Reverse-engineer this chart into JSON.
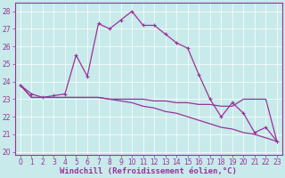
{
  "background_color": "#c8eaea",
  "line_color": "#993399",
  "hours": [
    0,
    1,
    2,
    3,
    4,
    5,
    6,
    7,
    8,
    9,
    10,
    11,
    12,
    13,
    14,
    15,
    16,
    17,
    18,
    19,
    20,
    21,
    22,
    23
  ],
  "line1": [
    23.8,
    23.3,
    23.1,
    23.2,
    23.3,
    25.5,
    24.3,
    27.3,
    27.0,
    27.5,
    28.0,
    27.2,
    27.2,
    26.7,
    26.2,
    25.9,
    24.4,
    23.0,
    22.0,
    22.8,
    22.2,
    21.1,
    21.4,
    20.6
  ],
  "line2": [
    23.8,
    23.1,
    23.1,
    23.1,
    23.1,
    23.1,
    23.1,
    23.1,
    23.0,
    23.0,
    23.0,
    23.0,
    22.9,
    22.9,
    22.8,
    22.8,
    22.7,
    22.7,
    22.6,
    22.6,
    23.0,
    23.0,
    23.0,
    20.6
  ],
  "line3": [
    23.8,
    23.1,
    23.1,
    23.1,
    23.1,
    23.1,
    23.1,
    23.1,
    23.0,
    22.9,
    22.8,
    22.6,
    22.5,
    22.3,
    22.2,
    22.0,
    21.8,
    21.6,
    21.4,
    21.3,
    21.1,
    21.0,
    20.8,
    20.6
  ],
  "xlabel": "Windchill (Refroidissement éolien,°C)",
  "xlim": [
    -0.5,
    23.5
  ],
  "ylim": [
    19.85,
    28.5
  ],
  "yticks": [
    20,
    21,
    22,
    23,
    24,
    25,
    26,
    27,
    28
  ],
  "xticks": [
    0,
    1,
    2,
    3,
    4,
    5,
    6,
    7,
    8,
    9,
    10,
    11,
    12,
    13,
    14,
    15,
    16,
    17,
    18,
    19,
    20,
    21,
    22,
    23
  ],
  "xtick_labels": [
    "0",
    "1",
    "2",
    "3",
    "4",
    "5",
    "6",
    "7",
    "8",
    "9",
    "10",
    "11",
    "12",
    "13",
    "14",
    "15",
    "16",
    "17",
    "18",
    "19",
    "20",
    "21",
    "22",
    "23"
  ],
  "grid_color": "#aadddd",
  "xlabel_fontsize": 6.5,
  "tick_fontsize": 5.5
}
